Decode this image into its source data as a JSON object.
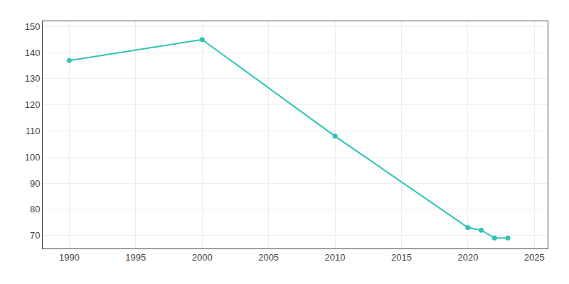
{
  "chart_data": {
    "type": "line",
    "x": [
      1990,
      2000,
      2010,
      2020,
      2021,
      2022,
      2023
    ],
    "values": [
      137,
      145,
      108,
      73,
      72,
      69,
      69
    ],
    "color": "#2ec4b6",
    "marker": "circle",
    "xlim": [
      1988,
      2026
    ],
    "xticks": [
      1990,
      1995,
      2000,
      2005,
      2010,
      2015,
      2020,
      2025
    ],
    "ylim": [
      65,
      152
    ],
    "yticks": [
      70,
      80,
      90,
      100,
      110,
      120,
      130,
      140,
      150
    ],
    "grid": true
  }
}
